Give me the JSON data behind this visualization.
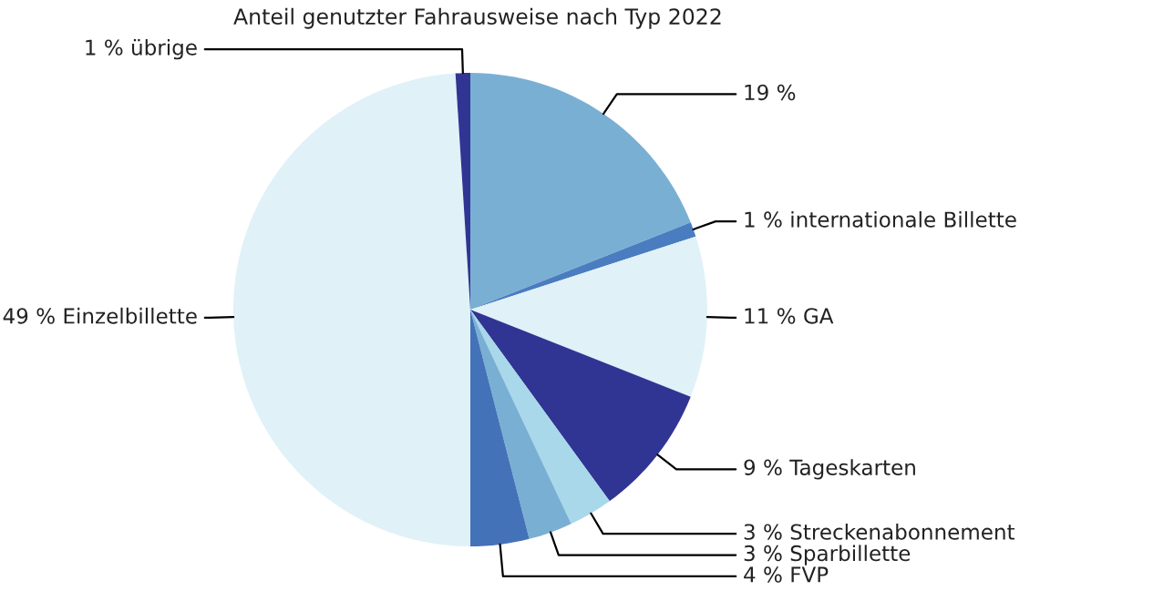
{
  "chart_data": {
    "type": "pie",
    "title": "Anteil genutzter Fahrausweise nach Typ 2022",
    "categories": [
      null,
      "internationale Billette",
      "GA",
      "Tageskarten",
      "Streckenabonnement",
      "Sparbillette",
      "FVP",
      "Einzelbillette",
      "übrige"
    ],
    "values": [
      19,
      1,
      11,
      9,
      3,
      3,
      4,
      49,
      1
    ],
    "value_labels": [
      "19 %",
      "1 %",
      "11 %",
      "9 %",
      "3 %",
      "3 %",
      "4 %",
      "49 %",
      "1 %"
    ],
    "colors": [
      "#7aafd4",
      "#4a7cc0",
      "#e0f1f8",
      "#303594",
      "#a8d8ea",
      "#7aafd4",
      "#4472b8",
      "#e0f1f8",
      "#303594"
    ]
  }
}
